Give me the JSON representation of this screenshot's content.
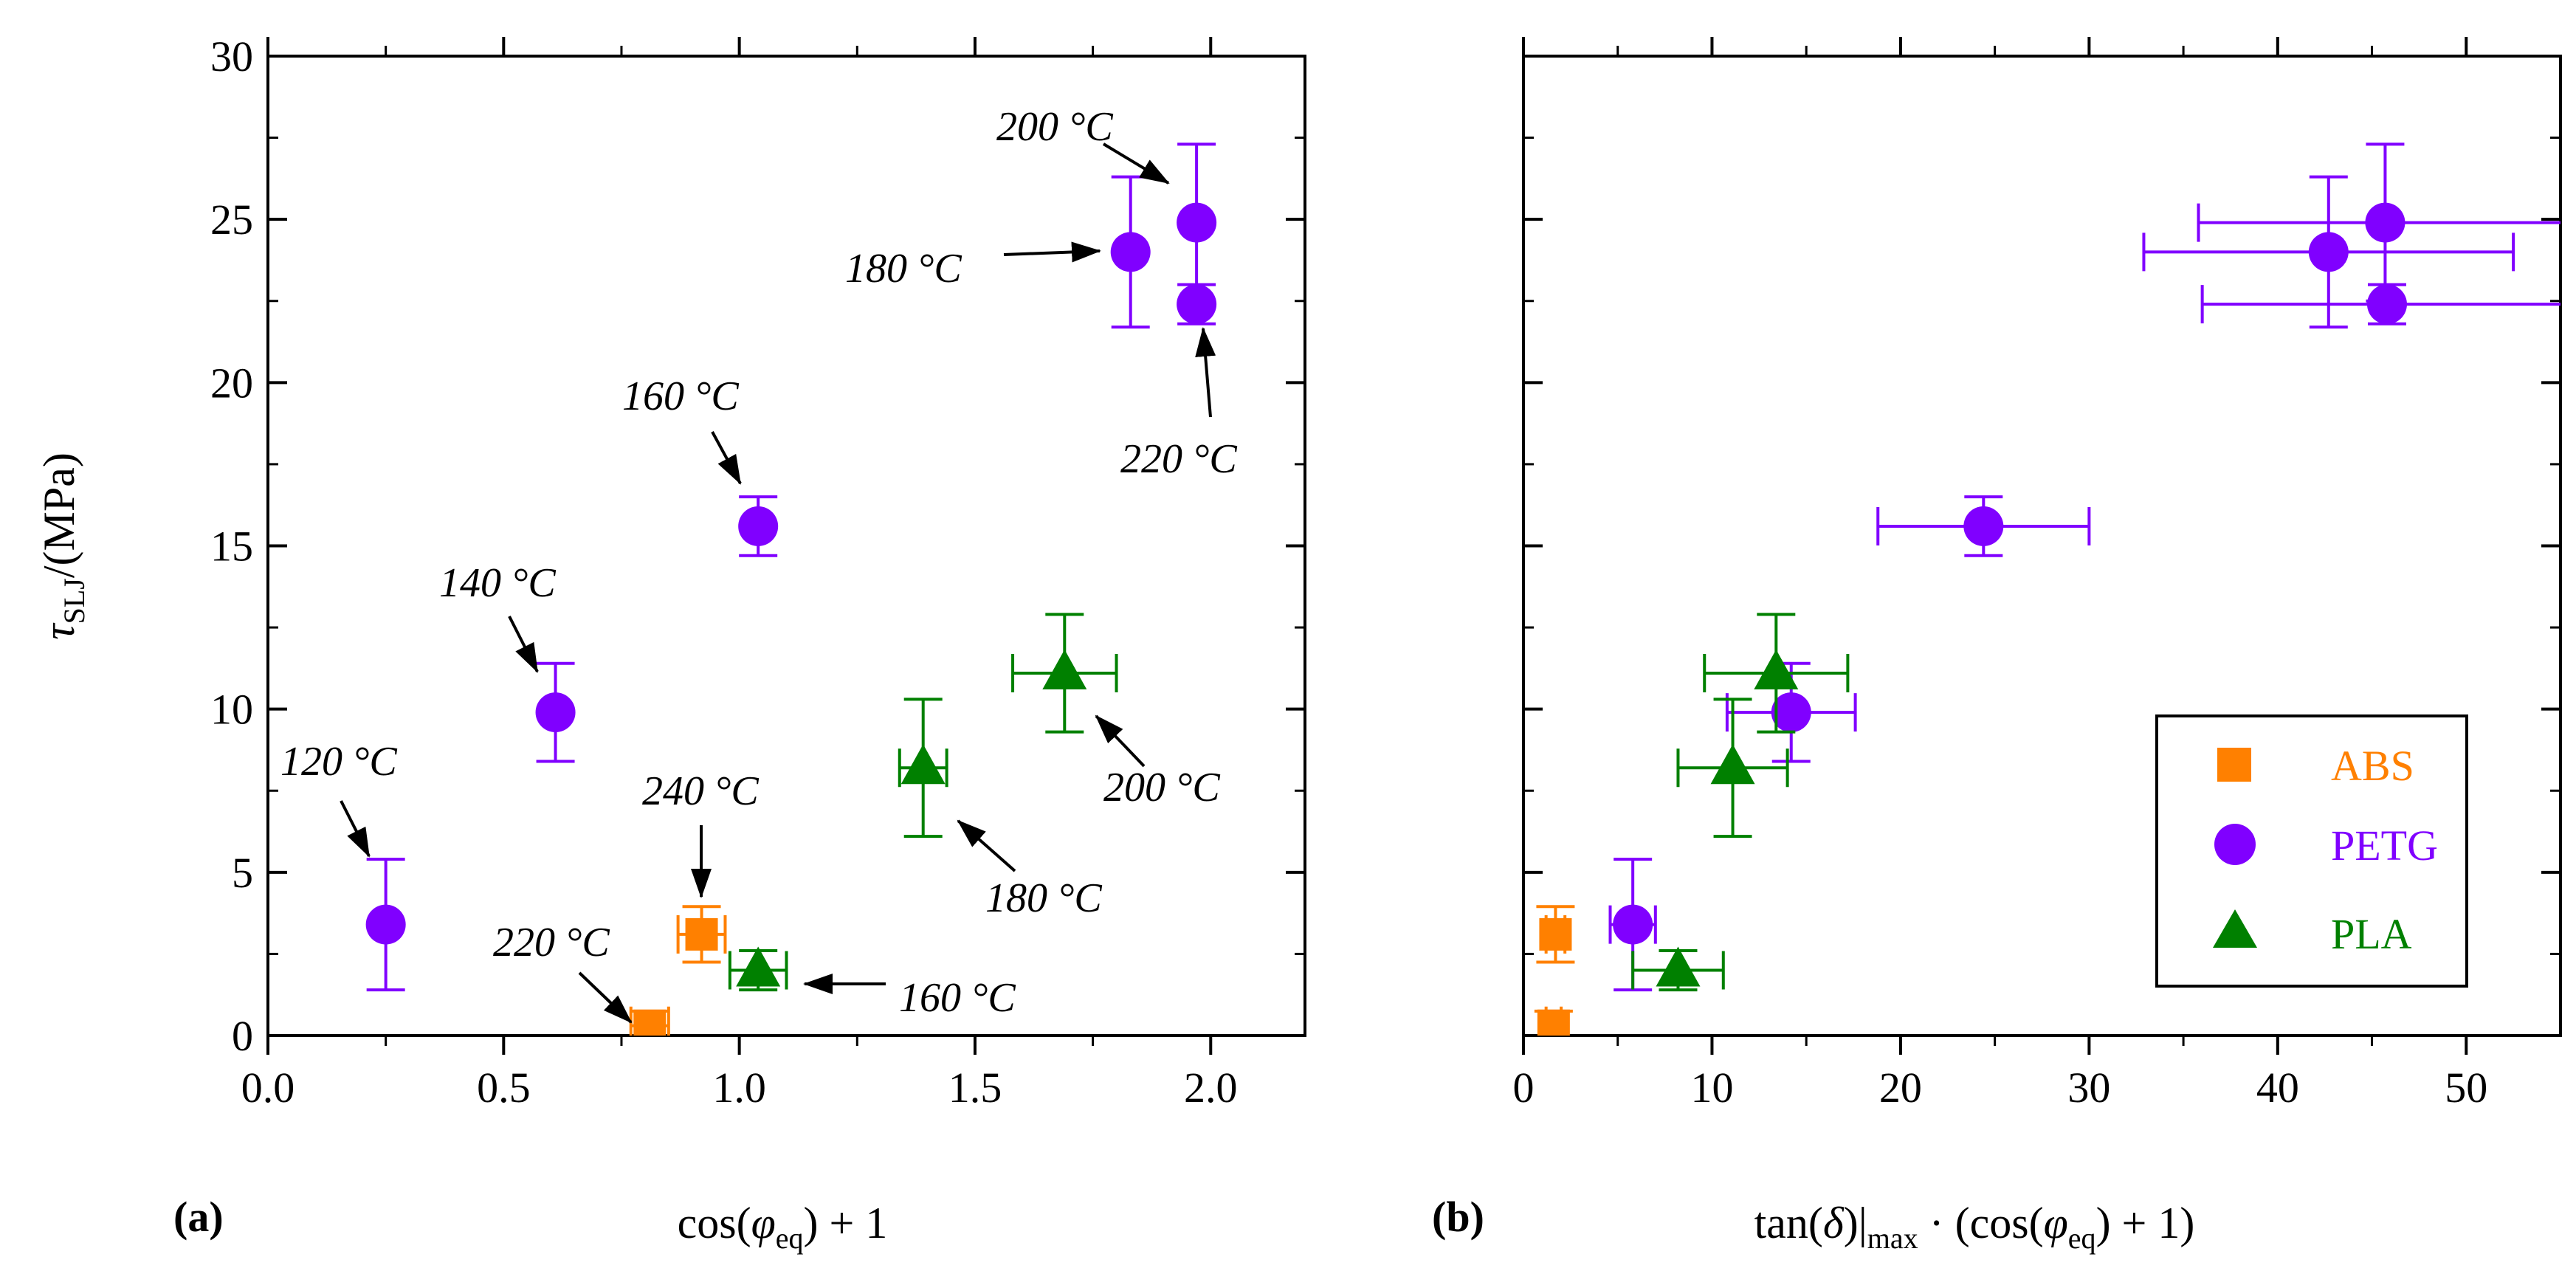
{
  "colors": {
    "ABS": "#ff8000",
    "PETG": "#8000ff",
    "PLA": "#008000",
    "axis": "#000000",
    "arrow": "#000000"
  },
  "panel_labels": [
    "(a)",
    "(b)"
  ],
  "y_axis": {
    "label_main": "τ",
    "label_sub": "SLJ",
    "label_unit": "/(MPa)"
  },
  "legend": {
    "entries": [
      {
        "name": "ABS",
        "marker": "square"
      },
      {
        "name": "PETG",
        "marker": "circle"
      },
      {
        "name": "PLA",
        "marker": "triangle"
      }
    ]
  },
  "chart_data": [
    {
      "type": "scatter",
      "panel": "(a)",
      "xlabel_parts": {
        "pre": "cos(",
        "phi": "φ",
        "sub": "eq",
        "post": ") + 1"
      },
      "ylabel": "τSLJ/(MPa)",
      "xlim": [
        0,
        2.2
      ],
      "ylim": [
        0,
        30
      ],
      "xticks": [
        0.0,
        0.5,
        1.0,
        1.5,
        2.0
      ],
      "xtick_labels": [
        "0.0",
        "0.5",
        "1.0",
        "1.5",
        "2.0"
      ],
      "yticks": [
        0,
        5,
        10,
        15,
        20,
        25,
        30
      ],
      "ytick_labels": [
        "0",
        "5",
        "10",
        "15",
        "20",
        "25",
        "30"
      ],
      "series": [
        {
          "name": "ABS",
          "marker": "square",
          "points": [
            {
              "x": 0.81,
              "y": 0.3,
              "xerr": 0.04,
              "yerr": 0.45
            },
            {
              "x": 0.92,
              "y": 3.1,
              "xerr": 0.05,
              "yerr": 0.85
            }
          ]
        },
        {
          "name": "PETG",
          "marker": "circle",
          "points": [
            {
              "x": 0.25,
              "y": 3.4,
              "xerr": 0.0,
              "yerr": 2.0
            },
            {
              "x": 0.61,
              "y": 9.9,
              "xerr": 0.0,
              "yerr": 1.5
            },
            {
              "x": 1.04,
              "y": 15.6,
              "xerr": 0.0,
              "yerr": 0.9
            },
            {
              "x": 1.83,
              "y": 24.0,
              "xerr": 0.0,
              "yerr": 2.3
            },
            {
              "x": 1.97,
              "y": 24.9,
              "xerr": 0.0,
              "yerr": 2.4
            },
            {
              "x": 1.97,
              "y": 22.4,
              "xerr": 0.0,
              "yerr": 0.6
            }
          ]
        },
        {
          "name": "PLA",
          "marker": "triangle",
          "points": [
            {
              "x": 1.04,
              "y": 2.0,
              "xerr": 0.06,
              "yerr": 0.6
            },
            {
              "x": 1.39,
              "y": 8.2,
              "xerr": 0.05,
              "yerr": 2.1
            },
            {
              "x": 1.69,
              "y": 11.1,
              "xerr": 0.11,
              "yerr": 1.8
            }
          ]
        }
      ],
      "annotations": [
        {
          "text": "120 °C",
          "color": "PETG"
        },
        {
          "text": "140 °C",
          "color": "PETG"
        },
        {
          "text": "160 °C",
          "color": "PETG"
        },
        {
          "text": "180 °C",
          "color": "PETG"
        },
        {
          "text": "200 °C",
          "color": "PETG"
        },
        {
          "text": "220 °C",
          "color": "PETG"
        },
        {
          "text": "220 °C",
          "color": "ABS"
        },
        {
          "text": "240 °C",
          "color": "ABS"
        },
        {
          "text": "160 °C",
          "color": "PLA"
        },
        {
          "text": "180 °C",
          "color": "PLA"
        },
        {
          "text": "200 °C",
          "color": "PLA"
        }
      ]
    },
    {
      "type": "scatter",
      "panel": "(b)",
      "xlabel_parts": {
        "pre": "tan(",
        "delta": "δ",
        "bar": ")|",
        "sub": "max",
        "mid": " · (cos(",
        "phi": "φ",
        "sub2": "eq",
        "post": ") + 1)"
      },
      "ylabel": "τSLJ/(MPa)",
      "xlim": [
        0,
        55
      ],
      "ylim": [
        0,
        30
      ],
      "xticks": [
        0,
        10,
        20,
        30,
        40,
        50
      ],
      "xtick_labels": [
        "0",
        "10",
        "20",
        "30",
        "40",
        "50"
      ],
      "yticks": [
        0,
        5,
        10,
        15,
        20,
        25,
        30
      ],
      "series": [
        {
          "name": "ABS",
          "marker": "square",
          "points": [
            {
              "x": 1.6,
              "y": 0.3,
              "xerr": 0.4,
              "yerr": 0.45
            },
            {
              "x": 1.7,
              "y": 3.1,
              "xerr": 0.5,
              "yerr": 0.85
            }
          ]
        },
        {
          "name": "PETG",
          "marker": "circle",
          "points": [
            {
              "x": 5.8,
              "y": 3.4,
              "xerr": 1.2,
              "yerr": 2.0
            },
            {
              "x": 14.2,
              "y": 9.9,
              "xerr": 3.4,
              "yerr": 1.5
            },
            {
              "x": 24.4,
              "y": 15.6,
              "xerr": 5.6,
              "yerr": 0.9
            },
            {
              "x": 42.7,
              "y": 24.0,
              "xerr": 9.8,
              "yerr": 2.3
            },
            {
              "x": 45.7,
              "y": 24.9,
              "xerr": 9.9,
              "yerr": 2.4
            },
            {
              "x": 45.8,
              "y": 22.4,
              "xerr": 9.8,
              "yerr": 0.6
            }
          ]
        },
        {
          "name": "PLA",
          "marker": "triangle",
          "points": [
            {
              "x": 8.2,
              "y": 2.0,
              "xerr": 2.4,
              "yerr": 0.6
            },
            {
              "x": 11.1,
              "y": 8.2,
              "xerr": 2.9,
              "yerr": 2.1
            },
            {
              "x": 13.4,
              "y": 11.1,
              "xerr": 3.8,
              "yerr": 1.8
            }
          ]
        }
      ]
    }
  ]
}
